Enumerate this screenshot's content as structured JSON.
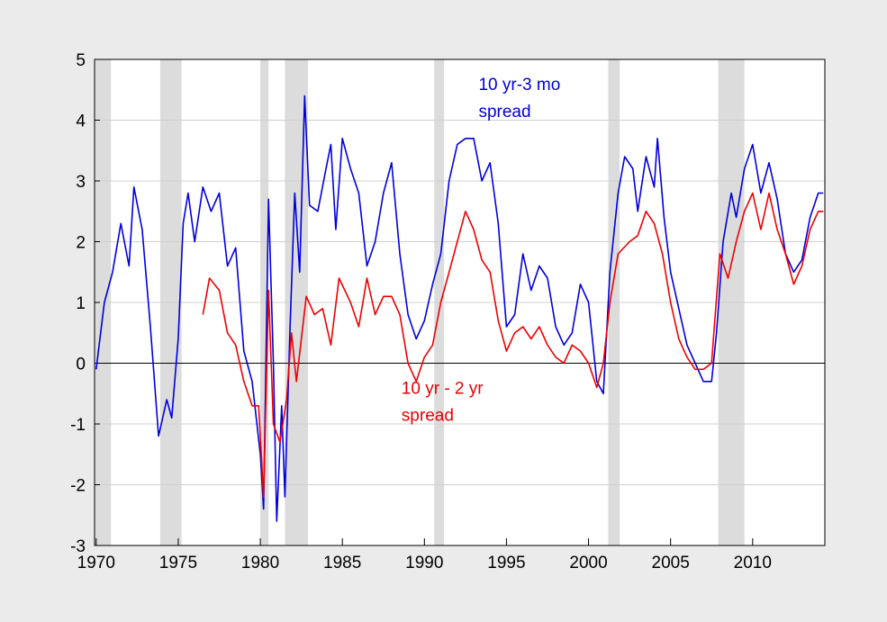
{
  "chart_data": {
    "type": "line",
    "xlim": [
      1969.9,
      2014.4
    ],
    "xticks": [
      1970,
      1975,
      1980,
      1985,
      1990,
      1995,
      2000,
      2005,
      2010
    ],
    "ylim": [
      -3,
      5
    ],
    "yticks": [
      -3,
      -2,
      -1,
      0,
      1,
      2,
      3,
      4,
      5
    ],
    "grid": true,
    "zero_line": true,
    "recessions": [
      [
        1969.9,
        1970.9
      ],
      [
        1973.9,
        1975.2
      ],
      [
        1980.0,
        1980.5
      ],
      [
        1981.5,
        1982.9
      ],
      [
        1990.6,
        1991.2
      ],
      [
        2001.2,
        2001.9
      ],
      [
        2007.9,
        2009.5
      ]
    ],
    "recession_color": "#dcdcdc",
    "annotations": [
      {
        "lines": [
          "10 yr-3 mo",
          "spread"
        ],
        "color": "#0000dd",
        "x": 1993.3,
        "y": 4.5
      },
      {
        "lines": [
          "10 yr - 2 yr",
          "spread"
        ],
        "color": "#ee0000",
        "x": 1988.6,
        "y": -0.5
      }
    ],
    "series": [
      {
        "color": "#0000dd",
        "x": [
          1970.0,
          1970.5,
          1971.0,
          1971.5,
          1972.0,
          1972.3,
          1972.8,
          1973.3,
          1973.8,
          1974.3,
          1974.6,
          1975.0,
          1975.3,
          1975.6,
          1976.0,
          1976.5,
          1977.0,
          1977.5,
          1978.0,
          1978.5,
          1979.0,
          1979.5,
          1980.0,
          1980.2,
          1980.5,
          1980.8,
          1981.0,
          1981.3,
          1981.5,
          1981.8,
          1982.1,
          1982.4,
          1982.7,
          1983.0,
          1983.5,
          1984.0,
          1984.3,
          1984.6,
          1985.0,
          1985.5,
          1986.0,
          1986.5,
          1987.0,
          1987.5,
          1988.0,
          1988.5,
          1989.0,
          1989.5,
          1990.0,
          1990.5,
          1991.0,
          1991.5,
          1992.0,
          1992.5,
          1993.0,
          1993.5,
          1994.0,
          1994.5,
          1995.0,
          1995.5,
          1996.0,
          1996.5,
          1997.0,
          1997.5,
          1998.0,
          1998.5,
          1999.0,
          1999.5,
          2000.0,
          2000.5,
          2000.9,
          2001.3,
          2001.8,
          2002.2,
          2002.7,
          2003.0,
          2003.5,
          2004.0,
          2004.2,
          2004.6,
          2005.0,
          2005.5,
          2006.0,
          2006.5,
          2007.0,
          2007.5,
          2007.8,
          2008.2,
          2008.7,
          2009.0,
          2009.5,
          2010.0,
          2010.5,
          2011.0,
          2011.5,
          2012.0,
          2012.5,
          2013.0,
          2013.5,
          2014.0,
          2014.3
        ],
        "values": [
          -0.1,
          1.0,
          1.5,
          2.3,
          1.6,
          2.9,
          2.2,
          0.6,
          -1.2,
          -0.6,
          -0.9,
          0.4,
          2.3,
          2.8,
          2.0,
          2.9,
          2.5,
          2.8,
          1.6,
          1.9,
          0.2,
          -0.3,
          -1.5,
          -2.4,
          2.7,
          0.0,
          -2.6,
          -0.7,
          -2.2,
          0.5,
          2.8,
          1.5,
          4.4,
          2.6,
          2.5,
          3.2,
          3.6,
          2.2,
          3.7,
          3.2,
          2.8,
          1.6,
          2.0,
          2.8,
          3.3,
          1.8,
          0.8,
          0.4,
          0.7,
          1.3,
          1.8,
          3.0,
          3.6,
          3.7,
          3.7,
          3.0,
          3.3,
          2.3,
          0.6,
          0.8,
          1.8,
          1.2,
          1.6,
          1.4,
          0.6,
          0.3,
          0.5,
          1.3,
          1.0,
          -0.3,
          -0.5,
          1.5,
          2.8,
          3.4,
          3.2,
          2.5,
          3.4,
          2.9,
          3.7,
          2.4,
          1.5,
          0.9,
          0.3,
          0.0,
          -0.3,
          -0.3,
          0.5,
          2.0,
          2.8,
          2.4,
          3.2,
          3.6,
          2.8,
          3.3,
          2.7,
          1.8,
          1.5,
          1.7,
          2.4,
          2.8,
          2.8
        ]
      },
      {
        "color": "#ee0000",
        "x": [
          1976.5,
          1976.9,
          1977.5,
          1978.0,
          1978.5,
          1979.0,
          1979.5,
          1979.9,
          1980.2,
          1980.5,
          1980.8,
          1981.2,
          1981.6,
          1981.9,
          1982.2,
          1982.8,
          1983.3,
          1983.8,
          1984.3,
          1984.8,
          1985.5,
          1986.0,
          1986.5,
          1987.0,
          1987.5,
          1988.0,
          1988.5,
          1989.0,
          1989.5,
          1990.0,
          1990.5,
          1991.0,
          1991.5,
          1992.0,
          1992.5,
          1993.0,
          1993.5,
          1994.0,
          1994.5,
          1995.0,
          1995.5,
          1996.0,
          1996.5,
          1997.0,
          1997.5,
          1998.0,
          1998.5,
          1999.0,
          1999.5,
          2000.0,
          2000.5,
          2000.9,
          2001.3,
          2001.8,
          2002.5,
          2003.0,
          2003.5,
          2004.0,
          2004.5,
          2005.0,
          2005.5,
          2006.0,
          2006.5,
          2007.0,
          2007.5,
          2008.0,
          2008.5,
          2009.0,
          2009.5,
          2010.0,
          2010.5,
          2011.0,
          2011.5,
          2012.0,
          2012.5,
          2013.0,
          2013.5,
          2014.0,
          2014.3
        ],
        "values": [
          0.8,
          1.4,
          1.2,
          0.5,
          0.3,
          -0.3,
          -0.7,
          -0.7,
          -2.2,
          1.2,
          -1.0,
          -1.3,
          -0.6,
          0.5,
          -0.3,
          1.1,
          0.8,
          0.9,
          0.3,
          1.4,
          1.0,
          0.6,
          1.4,
          0.8,
          1.1,
          1.1,
          0.8,
          0.0,
          -0.3,
          0.1,
          0.3,
          1.0,
          1.5,
          2.0,
          2.5,
          2.2,
          1.7,
          1.5,
          0.7,
          0.2,
          0.5,
          0.6,
          0.4,
          0.6,
          0.3,
          0.1,
          0.0,
          0.3,
          0.2,
          0.0,
          -0.4,
          0.0,
          1.0,
          1.8,
          2.0,
          2.1,
          2.5,
          2.3,
          1.8,
          1.0,
          0.4,
          0.1,
          -0.1,
          -0.1,
          0.0,
          1.8,
          1.4,
          2.0,
          2.5,
          2.8,
          2.2,
          2.8,
          2.2,
          1.8,
          1.3,
          1.6,
          2.2,
          2.5,
          2.5
        ]
      }
    ]
  }
}
